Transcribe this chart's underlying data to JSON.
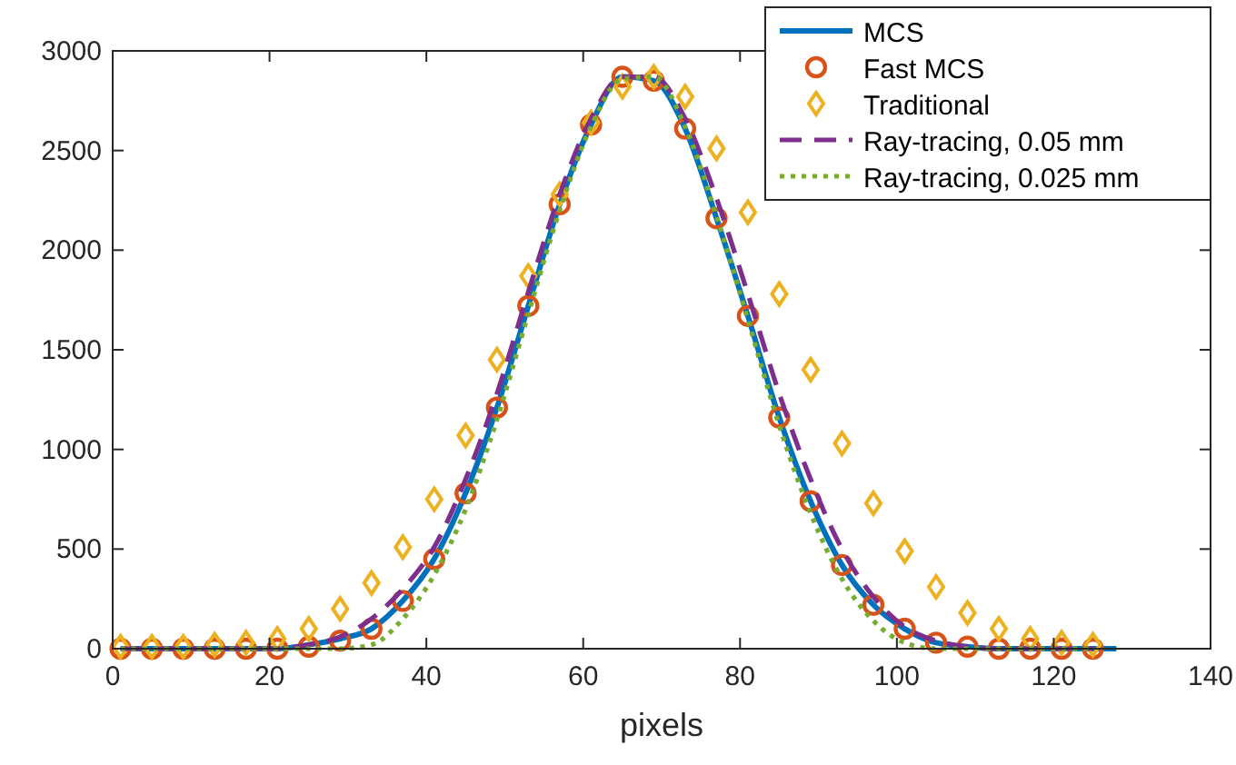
{
  "chart_data": {
    "type": "line",
    "xlabel": "pixels",
    "xlim": [
      0,
      140
    ],
    "xticks": [
      0,
      20,
      40,
      60,
      80,
      100,
      120,
      140
    ],
    "ylim": [
      0,
      3000
    ],
    "yticks": [
      0,
      500,
      1000,
      1500,
      2000,
      2500,
      3000
    ],
    "legend": "top right",
    "grid": false,
    "x": [
      1,
      5,
      9,
      13,
      17,
      21,
      25,
      29,
      33,
      37,
      41,
      45,
      49,
      53,
      57,
      61,
      65,
      69,
      73,
      77,
      81,
      85,
      89,
      93,
      97,
      101,
      105,
      109,
      113,
      117,
      121,
      125
    ],
    "series": [
      {
        "name": "MCS",
        "color": "#0072bd",
        "line_style": "solid",
        "marker": "none",
        "x": [
          1,
          5,
          9,
          13,
          17,
          21,
          25,
          29,
          33,
          37,
          41,
          45,
          49,
          53,
          57,
          61,
          65,
          69,
          73,
          77,
          81,
          85,
          89,
          93,
          97,
          101,
          105,
          109,
          113,
          117,
          121,
          125,
          128
        ],
        "values": [
          0,
          0,
          0,
          0,
          0,
          0,
          20,
          50,
          100,
          240,
          450,
          780,
          1210,
          1720,
          2230,
          2630,
          2870,
          2850,
          2610,
          2160,
          1670,
          1160,
          740,
          420,
          220,
          100,
          30,
          10,
          0,
          0,
          0,
          0,
          0
        ]
      },
      {
        "name": "Fast MCS",
        "type": "scatter",
        "color": "#d95319",
        "marker": "circle",
        "values": [
          0,
          0,
          0,
          0,
          0,
          0,
          10,
          40,
          100,
          240,
          450,
          780,
          1210,
          1720,
          2230,
          2630,
          2870,
          2850,
          2610,
          2160,
          1670,
          1160,
          740,
          420,
          220,
          100,
          30,
          10,
          0,
          0,
          0,
          0
        ]
      },
      {
        "name": "Traditional",
        "type": "scatter",
        "color": "#edb120",
        "marker": "diamond",
        "values": [
          10,
          10,
          10,
          20,
          30,
          50,
          100,
          200,
          330,
          510,
          750,
          1070,
          1450,
          1870,
          2280,
          2640,
          2820,
          2870,
          2770,
          2510,
          2190,
          1780,
          1400,
          1030,
          730,
          490,
          310,
          180,
          100,
          50,
          30,
          20
        ]
      },
      {
        "name": "Ray-tracing, 0.05 mm",
        "color": "#7e2f8e",
        "line_style": "dashed",
        "marker": "none",
        "values": [
          0,
          0,
          0,
          0,
          0,
          0,
          20,
          60,
          150,
          300,
          510,
          850,
          1280,
          1790,
          2280,
          2660,
          2870,
          2870,
          2660,
          2260,
          1780,
          1280,
          850,
          500,
          260,
          110,
          40,
          10,
          0,
          0,
          0,
          0
        ]
      },
      {
        "name": "Ray-tracing, 0.025 mm",
        "color": "#77ac30",
        "line_style": "dotted",
        "marker": "none",
        "values": [
          0,
          0,
          0,
          0,
          0,
          0,
          0,
          0,
          20,
          150,
          370,
          700,
          1150,
          1680,
          2200,
          2620,
          2860,
          2870,
          2620,
          2170,
          1650,
          1120,
          680,
          350,
          140,
          30,
          0,
          0,
          0,
          0,
          0,
          0
        ]
      }
    ]
  }
}
